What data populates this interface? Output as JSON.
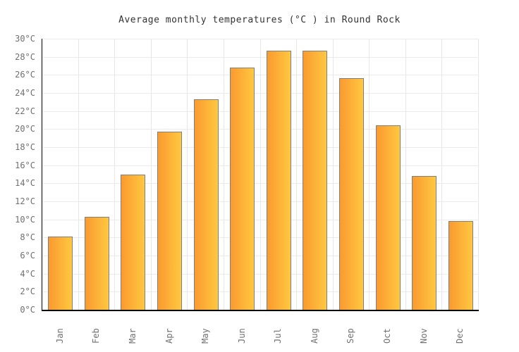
{
  "chart_data": {
    "type": "bar",
    "title": "Average monthly temperatures (°C ) in Round Rock",
    "categories": [
      "Jan",
      "Feb",
      "Mar",
      "Apr",
      "May",
      "Jun",
      "Jul",
      "Aug",
      "Sep",
      "Oct",
      "Nov",
      "Dec"
    ],
    "values": [
      8.1,
      10.3,
      15.0,
      19.7,
      23.3,
      26.8,
      28.7,
      28.7,
      25.6,
      20.4,
      14.8,
      9.8
    ],
    "xlabel": "",
    "ylabel": "",
    "ylim": [
      0,
      30
    ],
    "ytick_step": 2,
    "ytick_suffix": "°C",
    "grid": true,
    "legend": "none",
    "colors": {
      "bar_gradient_left": "#FA9A30",
      "bar_gradient_right": "#FFC840",
      "bar_border": "#7F7F7F",
      "axis": "#000000",
      "hgrid": "#EBEBEB",
      "vgrid": "#E7E7E7",
      "tick_label": "#707070",
      "title": "#333333",
      "background": "#FFFFFF"
    }
  }
}
